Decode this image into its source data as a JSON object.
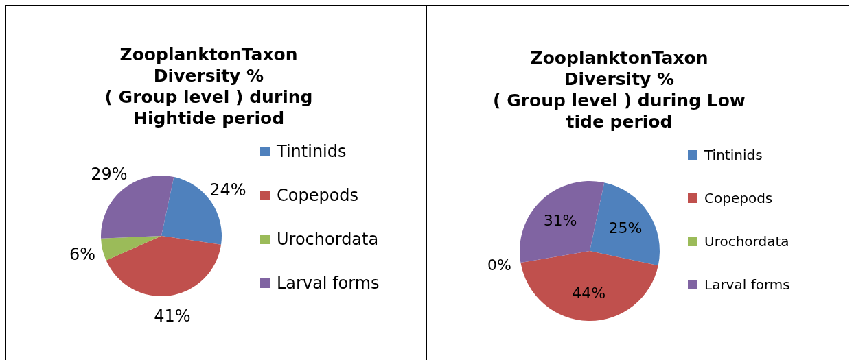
{
  "chart_data": [
    {
      "type": "pie",
      "title": "ZooplanktonTaxon\nDiversity %\n( Group level ) during\nHightide period",
      "categories": [
        "Tintinids",
        "Copepods",
        "Urochordata",
        "Larval forms"
      ],
      "values": [
        24,
        41,
        6,
        29
      ],
      "value_labels": [
        "24%",
        "41%",
        "6%",
        "29%"
      ],
      "colors": [
        "#4f81bd",
        "#c0504d",
        "#9bbb59",
        "#8064a2"
      ],
      "legend": "right"
    },
    {
      "type": "pie",
      "title": "ZooplanktonTaxon\nDiversity %\n( Group level ) during Low\ntide period",
      "categories": [
        "Tintinids",
        "Copepods",
        "Urochordata",
        "Larval forms"
      ],
      "values": [
        25,
        44,
        0,
        31
      ],
      "value_labels": [
        "25%",
        "44%",
        "0%",
        "31%"
      ],
      "colors": [
        "#4f81bd",
        "#c0504d",
        "#9bbb59",
        "#8064a2"
      ],
      "legend": "right"
    }
  ]
}
